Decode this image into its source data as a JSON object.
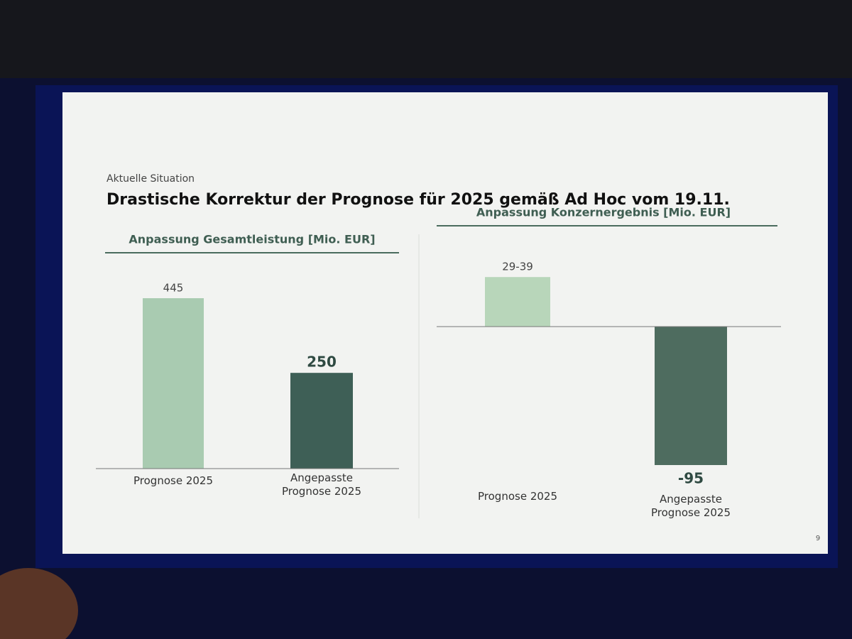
{
  "header": {
    "kicker": "Aktuelle Situation",
    "title": "Drastische Korrektur der Prognose für 2025 gemäß Ad Hoc vom 19.11."
  },
  "chart_data": [
    {
      "type": "bar",
      "title": "Anpassung Gesamtleistung [Mio. EUR]",
      "categories": [
        "Prognose 2025",
        "Angepasste Prognose 2025"
      ],
      "values": [
        445,
        250
      ],
      "colors": [
        "#a9cbb1",
        "#3e5f56"
      ]
    },
    {
      "type": "bar",
      "title": "Anpassung Konzernergebnis [Mio. EUR]",
      "categories": [
        "Prognose 2025",
        "Angepasste Prognose 2025"
      ],
      "values": [
        34,
        -95
      ],
      "value_labels": [
        "29-39",
        "-95"
      ],
      "colors": [
        "#b8d6ba",
        "#4e6c5f"
      ]
    }
  ],
  "page_number": "9"
}
